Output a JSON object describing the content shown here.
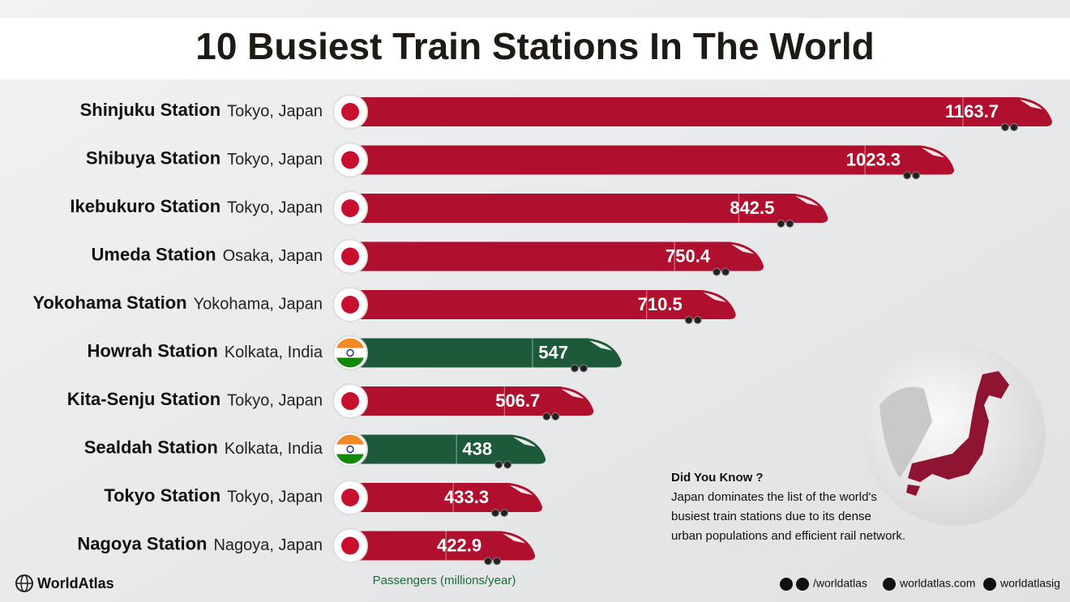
{
  "chart_data": {
    "type": "bar",
    "orientation": "horizontal",
    "title": "10 Busiest Train Stations In The World",
    "categories": [
      "Shinjuku Station",
      "Shibuya Station",
      "Ikebukuro Station",
      "Umeda Station",
      "Yokohama Station",
      "Howrah Station",
      "Kita-Senju Station",
      "Sealdah Station",
      "Tokyo Station",
      "Nagoya Station"
    ],
    "locations": [
      "Tokyo, Japan",
      "Tokyo, Japan",
      "Tokyo, Japan",
      "Osaka, Japan",
      "Yokohama, Japan",
      "Kolkata, India",
      "Tokyo, Japan",
      "Kolkata, India",
      "Tokyo, Japan",
      "Nagoya, Japan"
    ],
    "values": [
      1163.7,
      1023.3,
      842.5,
      750.4,
      710.5,
      547,
      506.7,
      438,
      433.3,
      422.9
    ],
    "colors": [
      "#b0102e",
      "#b0102e",
      "#b0102e",
      "#b0102e",
      "#b0102e",
      "#1d5a3a",
      "#b0102e",
      "#1d5a3a",
      "#b0102e",
      "#b0102e"
    ],
    "x_label": "Passengers (millions/year)"
  },
  "note": {
    "title": "Did You Know ?",
    "lines": [
      "Japan dominates the list of the world's",
      "busiest train stations due to its dense",
      "urban populations and efficient rail network."
    ]
  },
  "footer": {
    "brand": "WorldAtlas",
    "social": "/worldatlas",
    "website": "worldatlas.com",
    "instagram": "worldatlasig"
  }
}
